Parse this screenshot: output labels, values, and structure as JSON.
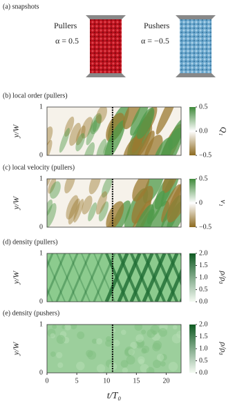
{
  "panel_a": {
    "label": "(a) snapshots",
    "pullers": {
      "name": "Pullers",
      "alpha": "α = 0.5"
    },
    "pushers": {
      "name": "Pushers",
      "alpha": "α = −0.5"
    }
  },
  "panels": [
    {
      "label": "(b) local order (pullers)",
      "ylabel": "y/W",
      "yticks": [
        "0",
        "1"
      ],
      "colorbar": {
        "label": "Q₁",
        "ticks": [
          "−0.5",
          "0.0",
          "0.5"
        ]
      }
    },
    {
      "label": "(c) local velocity (pullers)",
      "ylabel": "y/W",
      "yticks": [
        "0",
        "1"
      ],
      "colorbar": {
        "label": "v₁",
        "ticks": [
          "−0.5",
          "0",
          "0.5"
        ]
      }
    },
    {
      "label": "(d) density (pullers)",
      "ylabel": "y/W",
      "yticks": [
        "0",
        "1"
      ],
      "colorbar": {
        "label": "ρ/ρ₀",
        "ticks": [
          "0.0",
          "0.5",
          "1.0",
          "1.5",
          "2.0"
        ]
      }
    },
    {
      "label": "(e) density (pushers)",
      "ylabel": "y/W",
      "yticks": [
        "0",
        "1"
      ],
      "colorbar": {
        "label": "ρ/ρ₀",
        "ticks": [
          "0.0",
          "0.5",
          "1.0",
          "1.5",
          "2.0"
        ]
      }
    }
  ],
  "xaxis": {
    "label": "t/T₀",
    "ticks": [
      "0",
      "5",
      "10",
      "15",
      "20"
    ]
  }
}
